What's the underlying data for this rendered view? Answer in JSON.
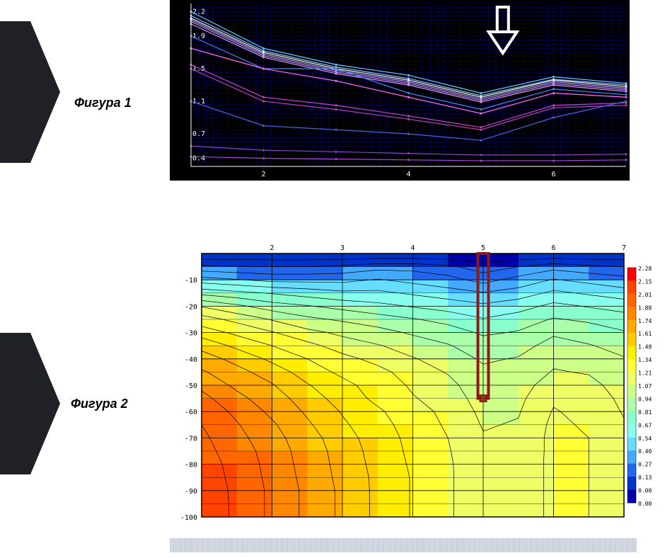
{
  "labels": {
    "fig1": "Фигура 1",
    "fig2": "Фигура 2"
  },
  "chart1": {
    "type": "line",
    "bg": "#000000",
    "grid_color": "#0000cc",
    "axis_text_color": "#ffffff",
    "tick_fontsize": 10,
    "xlim": [
      1,
      7
    ],
    "ylim": [
      0.3,
      2.3
    ],
    "yticks": [
      0.4,
      0.7,
      1.1,
      1.5,
      1.9,
      2.2
    ],
    "ytick_labels": [
      "0.4",
      "0.7",
      "1.1",
      "1.5",
      "1.9",
      "2.2"
    ],
    "xticks": [
      2,
      4,
      6
    ],
    "xtick_labels": [
      "2",
      "4",
      "6"
    ],
    "x": [
      1,
      2,
      3,
      4,
      5,
      6,
      7
    ],
    "series": [
      {
        "y": [
          2.2,
          1.75,
          1.55,
          1.42,
          1.2,
          1.4,
          1.32
        ],
        "color": "#66ccff"
      },
      {
        "y": [
          2.15,
          1.72,
          1.52,
          1.38,
          1.17,
          1.37,
          1.3
        ],
        "color": "#88ccff"
      },
      {
        "y": [
          2.12,
          1.7,
          1.5,
          1.36,
          1.15,
          1.36,
          1.28
        ],
        "color": "#ffffff"
      },
      {
        "y": [
          2.1,
          1.68,
          1.48,
          1.34,
          1.13,
          1.34,
          1.26
        ],
        "color": "#aaaaff"
      },
      {
        "y": [
          2.08,
          1.66,
          1.46,
          1.32,
          1.11,
          1.32,
          1.24
        ],
        "color": "#cc88ff"
      },
      {
        "y": [
          2.05,
          1.64,
          1.44,
          1.3,
          1.09,
          1.3,
          1.22
        ],
        "color": "#dd99ff"
      },
      {
        "y": [
          1.9,
          1.5,
          1.5,
          1.2,
          1.0,
          1.25,
          1.18
        ],
        "color": "#4488ff"
      },
      {
        "y": [
          1.75,
          1.5,
          1.35,
          1.15,
          0.95,
          1.2,
          1.15
        ],
        "color": "#ff66ff"
      },
      {
        "y": [
          1.55,
          1.15,
          1.05,
          0.92,
          0.78,
          1.05,
          1.08
        ],
        "color": "#cc44cc"
      },
      {
        "y": [
          1.5,
          1.1,
          1.0,
          0.88,
          0.75,
          1.02,
          1.05
        ],
        "color": "#bb44bb"
      },
      {
        "y": [
          1.1,
          0.8,
          0.75,
          0.7,
          0.62,
          0.9,
          1.1
        ],
        "color": "#4466dd"
      },
      {
        "y": [
          0.55,
          0.5,
          0.48,
          0.46,
          0.44,
          0.44,
          0.45
        ],
        "color": "#8844cc"
      },
      {
        "y": [
          0.42,
          0.4,
          0.39,
          0.38,
          0.37,
          0.37,
          0.38
        ],
        "color": "#aa44dd"
      }
    ],
    "arrow": {
      "x": 5.3,
      "color": "#ffffff"
    }
  },
  "chart2": {
    "type": "heatmap",
    "bg": "#ffffff",
    "axis_text_color": "#000000",
    "tick_fontsize": 10,
    "xlim": [
      1,
      7
    ],
    "ylim": [
      -100,
      0
    ],
    "yticks": [
      -10,
      -20,
      -30,
      -40,
      -50,
      -60,
      -70,
      -80,
      -90,
      -100
    ],
    "ytick_labels": [
      "-10",
      "-20",
      "-30",
      "-40",
      "-50",
      "-60",
      "-70",
      "-80",
      "-90",
      "-100"
    ],
    "xticks": [
      2,
      3,
      4,
      5,
      6,
      7
    ],
    "xtick_labels": [
      "2",
      "3",
      "4",
      "5",
      "6",
      "7"
    ],
    "grid_color": "#000000",
    "contour_color": "#000000",
    "colorscale": [
      {
        "v": 2.28,
        "c": "#ff0000"
      },
      {
        "v": 2.15,
        "c": "#ff4400"
      },
      {
        "v": 2.01,
        "c": "#ff6600"
      },
      {
        "v": 1.88,
        "c": "#ff8800"
      },
      {
        "v": 1.74,
        "c": "#ffaa00"
      },
      {
        "v": 1.61,
        "c": "#ffcc00"
      },
      {
        "v": 1.48,
        "c": "#ffee00"
      },
      {
        "v": 1.34,
        "c": "#ffff33"
      },
      {
        "v": 1.21,
        "c": "#eeff66"
      },
      {
        "v": 1.07,
        "c": "#ccff88"
      },
      {
        "v": 0.94,
        "c": "#aaffaa"
      },
      {
        "v": 0.81,
        "c": "#88ffcc"
      },
      {
        "v": 0.67,
        "c": "#88ffee"
      },
      {
        "v": 0.54,
        "c": "#66ddff"
      },
      {
        "v": 0.4,
        "c": "#44aaff"
      },
      {
        "v": 0.27,
        "c": "#2266ee"
      },
      {
        "v": 0.13,
        "c": "#0033cc"
      },
      {
        "v": 0.0,
        "c": "#0000aa"
      }
    ],
    "grid_x": [
      1,
      1.5,
      2,
      2.5,
      3,
      3.5,
      4,
      4.5,
      5,
      5.5,
      6,
      6.5,
      7
    ],
    "grid_y": [
      0,
      -5,
      -10,
      -15,
      -20,
      -25,
      -30,
      -35,
      -40,
      -45,
      -50,
      -55,
      -60,
      -65,
      -70,
      -75,
      -80,
      -85,
      -90,
      -95,
      -100
    ],
    "values": [
      [
        0.0,
        0.0,
        0.0,
        0.0,
        0.0,
        0.0,
        0.0,
        0.0,
        0.0,
        0.0,
        0.0,
        0.0,
        0.0
      ],
      [
        0.3,
        0.28,
        0.27,
        0.27,
        0.3,
        0.35,
        0.35,
        0.3,
        0.2,
        0.27,
        0.35,
        0.3,
        0.27
      ],
      [
        0.6,
        0.55,
        0.5,
        0.5,
        0.5,
        0.55,
        0.5,
        0.45,
        0.35,
        0.45,
        0.55,
        0.5,
        0.45
      ],
      [
        0.9,
        0.85,
        0.8,
        0.75,
        0.7,
        0.7,
        0.65,
        0.6,
        0.55,
        0.6,
        0.7,
        0.65,
        0.6
      ],
      [
        1.2,
        1.1,
        1.0,
        0.95,
        0.9,
        0.85,
        0.8,
        0.75,
        0.7,
        0.75,
        0.85,
        0.8,
        0.75
      ],
      [
        1.4,
        1.3,
        1.2,
        1.1,
        1.05,
        1.0,
        0.95,
        0.9,
        0.82,
        0.88,
        0.95,
        0.92,
        0.88
      ],
      [
        1.55,
        1.45,
        1.35,
        1.25,
        1.18,
        1.12,
        1.05,
        1.0,
        0.92,
        0.95,
        1.05,
        1.0,
        0.95
      ],
      [
        1.7,
        1.58,
        1.48,
        1.38,
        1.28,
        1.22,
        1.15,
        1.08,
        1.0,
        1.02,
        1.12,
        1.08,
        1.02
      ],
      [
        1.8,
        1.7,
        1.58,
        1.48,
        1.38,
        1.3,
        1.22,
        1.15,
        1.05,
        1.08,
        1.18,
        1.15,
        1.08
      ],
      [
        1.9,
        1.78,
        1.68,
        1.55,
        1.45,
        1.38,
        1.28,
        1.2,
        1.1,
        1.12,
        1.22,
        1.2,
        1.12
      ],
      [
        1.98,
        1.85,
        1.75,
        1.62,
        1.52,
        1.42,
        1.32,
        1.25,
        1.12,
        1.15,
        1.28,
        1.25,
        1.15
      ],
      [
        2.05,
        1.92,
        1.8,
        1.68,
        1.55,
        1.45,
        1.35,
        1.28,
        1.15,
        1.18,
        1.32,
        1.28,
        1.18
      ],
      [
        2.1,
        1.98,
        1.85,
        1.72,
        1.6,
        1.5,
        1.4,
        1.3,
        1.18,
        1.2,
        1.35,
        1.3,
        1.2
      ],
      [
        2.15,
        2.02,
        1.9,
        1.76,
        1.63,
        1.53,
        1.42,
        1.32,
        1.2,
        1.22,
        1.37,
        1.32,
        1.22
      ],
      [
        2.18,
        2.05,
        1.93,
        1.8,
        1.66,
        1.55,
        1.44,
        1.34,
        1.22,
        1.23,
        1.38,
        1.34,
        1.23
      ],
      [
        2.2,
        2.08,
        1.95,
        1.82,
        1.68,
        1.56,
        1.45,
        1.35,
        1.23,
        1.23,
        1.38,
        1.34,
        1.23
      ],
      [
        2.22,
        2.1,
        1.96,
        1.83,
        1.69,
        1.57,
        1.46,
        1.36,
        1.23,
        1.24,
        1.38,
        1.34,
        1.24
      ],
      [
        2.23,
        2.11,
        1.97,
        1.84,
        1.7,
        1.58,
        1.47,
        1.36,
        1.24,
        1.24,
        1.38,
        1.34,
        1.24
      ],
      [
        2.24,
        2.12,
        1.98,
        1.85,
        1.71,
        1.58,
        1.47,
        1.36,
        1.24,
        1.24,
        1.38,
        1.34,
        1.24
      ],
      [
        2.25,
        2.12,
        1.98,
        1.85,
        1.71,
        1.58,
        1.47,
        1.36,
        1.24,
        1.24,
        1.38,
        1.34,
        1.24
      ],
      [
        2.25,
        2.12,
        1.98,
        1.85,
        1.71,
        1.58,
        1.47,
        1.36,
        1.24,
        1.24,
        1.38,
        1.34,
        1.24
      ]
    ],
    "marker": {
      "x": 5,
      "y_top": 0,
      "y_bot": -55,
      "color": "#8b1a1a",
      "width": 0.15
    }
  }
}
